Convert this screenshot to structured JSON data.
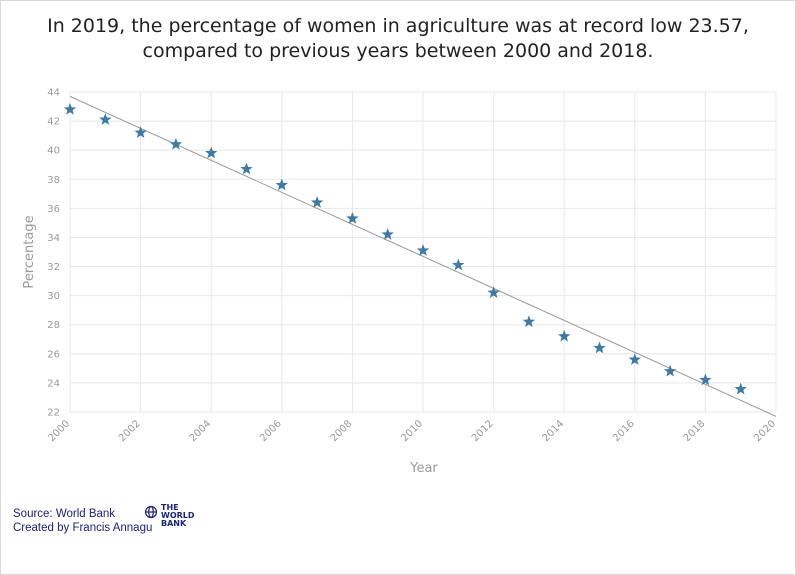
{
  "title_lines": [
    "In 2019, the percentage of women in agriculture was at record low 23.57,",
    "compared to previous years between 2000 and 2018."
  ],
  "footer": {
    "source": "Source: World Bank",
    "created_by": "Created by Francis Annagu"
  },
  "logo": {
    "icon": "globe-icon",
    "lines": [
      "THE",
      "WORLD",
      "BANK"
    ]
  },
  "chart_data": {
    "type": "scatter",
    "title": "In 2019, the percentage of women in agriculture was at record low 23.57, compared to previous years between 2000 and 2018.",
    "xlabel": "Year",
    "ylabel": "Percentage",
    "xlim": [
      2000,
      2020
    ],
    "ylim": [
      22,
      44
    ],
    "x_ticks": [
      2000,
      2002,
      2004,
      2006,
      2008,
      2010,
      2012,
      2014,
      2016,
      2018,
      2020
    ],
    "y_ticks": [
      22,
      24,
      26,
      28,
      30,
      32,
      34,
      36,
      38,
      40,
      42,
      44
    ],
    "grid": true,
    "marker": "star",
    "colors": {
      "marker": "#3d7aa5",
      "trendline": "#999999",
      "grid": "#e8e8e8"
    },
    "series": [
      {
        "x": [
          2000,
          2001,
          2002,
          2003,
          2004,
          2005,
          2006,
          2007,
          2008,
          2009,
          2010,
          2011,
          2012,
          2013,
          2014,
          2015,
          2016,
          2017,
          2018,
          2019
        ],
        "y": [
          42.8,
          42.1,
          41.2,
          40.4,
          39.8,
          38.7,
          37.6,
          36.4,
          35.3,
          34.2,
          33.1,
          32.1,
          30.2,
          28.2,
          27.2,
          26.4,
          25.6,
          24.8,
          24.2,
          23.57
        ]
      }
    ],
    "trendline": {
      "x": [
        2000,
        2020
      ],
      "y": [
        43.7,
        21.7
      ]
    }
  }
}
